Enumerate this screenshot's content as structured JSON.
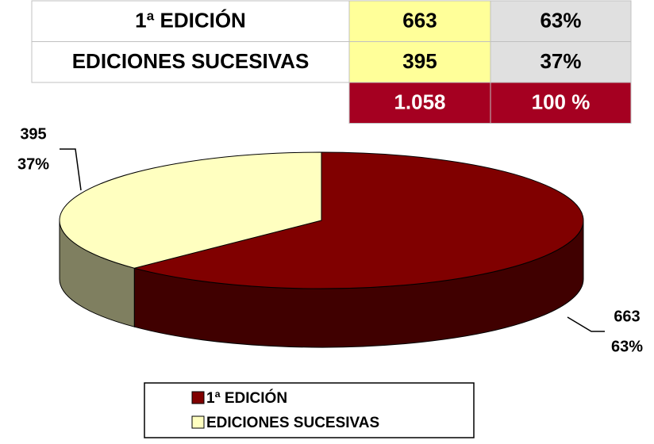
{
  "table": {
    "rows": [
      [
        "1ª EDICIÓN",
        "663",
        "63%"
      ],
      [
        "EDICIONES SUCESIVAS",
        "395",
        "37%"
      ]
    ],
    "total": [
      "1.058",
      "100 %"
    ]
  },
  "chart_data": {
    "type": "pie",
    "categories": [
      "1ª EDICIÓN",
      "EDICIONES SUCESIVAS"
    ],
    "values": [
      663,
      395
    ],
    "percent_labels": [
      "63%",
      "37%"
    ],
    "colors": [
      "#800000",
      "#ffffc0"
    ],
    "legend": "bottom"
  }
}
